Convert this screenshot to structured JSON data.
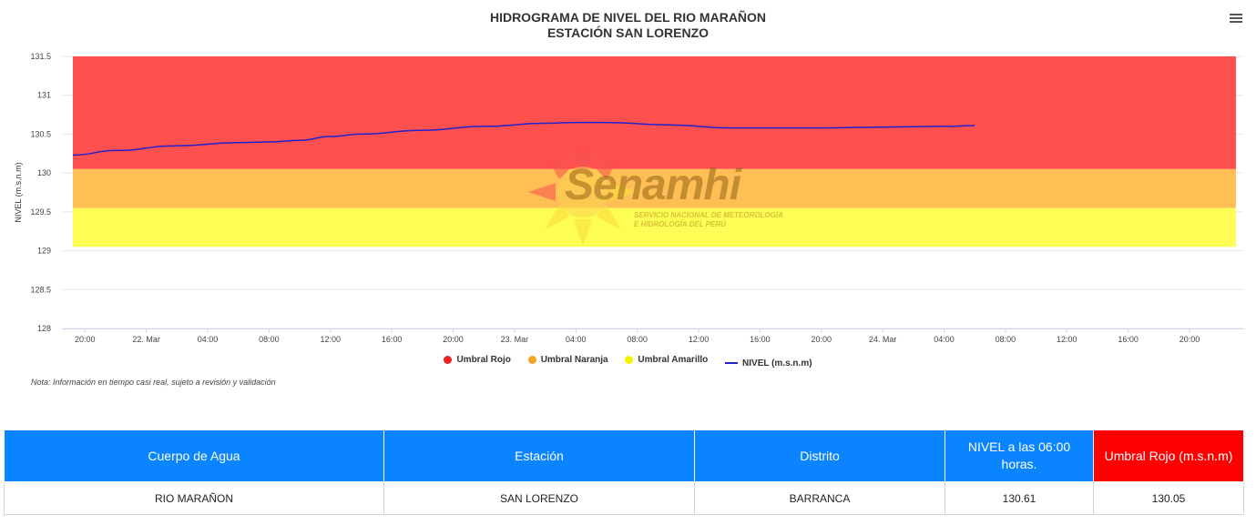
{
  "chart_data": {
    "type": "line",
    "title": "HIDROGRAMA DE NIVEL DEL RIO MARAÑON",
    "subtitle": "ESTACIÓN SAN LORENZO",
    "ylabel": "NIVEL (m.s.n.m)",
    "ylim": [
      128,
      131.5
    ],
    "yticks": [
      "128",
      "128.5",
      "129",
      "129.5",
      "130",
      "130.5",
      "131",
      "131.5"
    ],
    "xlim_hours": [
      -5.5,
      71.5
    ],
    "xticks": [
      {
        "label": "20:00",
        "hour": -4
      },
      {
        "label": "22. Mar",
        "hour": 0
      },
      {
        "label": "04:00",
        "hour": 4
      },
      {
        "label": "08:00",
        "hour": 8
      },
      {
        "label": "12:00",
        "hour": 12
      },
      {
        "label": "16:00",
        "hour": 16
      },
      {
        "label": "20:00",
        "hour": 20
      },
      {
        "label": "23. Mar",
        "hour": 24
      },
      {
        "label": "04:00",
        "hour": 28
      },
      {
        "label": "08:00",
        "hour": 32
      },
      {
        "label": "12:00",
        "hour": 36
      },
      {
        "label": "16:00",
        "hour": 40
      },
      {
        "label": "20:00",
        "hour": 44
      },
      {
        "label": "24. Mar",
        "hour": 48
      },
      {
        "label": "04:00",
        "hour": 52
      },
      {
        "label": "08:00",
        "hour": 56
      },
      {
        "label": "12:00",
        "hour": 60
      },
      {
        "label": "16:00",
        "hour": 64
      },
      {
        "label": "20:00",
        "hour": 68
      }
    ],
    "bands": [
      {
        "name": "Umbral Rojo",
        "from": 130.05,
        "to": 131.5,
        "color": "#ff5050"
      },
      {
        "name": "Umbral Naranja",
        "from": 129.55,
        "to": 130.05,
        "color": "#ffbf55"
      },
      {
        "name": "Umbral Amarillo",
        "from": 129.05,
        "to": 129.55,
        "color": "#fdfd55"
      }
    ],
    "series": [
      {
        "name": "NIVEL (m.s.n.m)",
        "color": "#2222cc",
        "x_hours": [
          -6,
          -2,
          2,
          6,
          8,
          10,
          12,
          14,
          18,
          22,
          26,
          28,
          30,
          34,
          38,
          40,
          44,
          48,
          52,
          54
        ],
        "y": [
          130.23,
          130.29,
          130.35,
          130.39,
          130.4,
          130.42,
          130.47,
          130.5,
          130.55,
          130.6,
          130.64,
          130.65,
          130.65,
          130.62,
          130.58,
          130.58,
          130.58,
          130.59,
          130.6,
          130.61
        ]
      }
    ],
    "legend": [
      {
        "label": "Umbral Rojo",
        "color": "#ee2222",
        "kind": "dot"
      },
      {
        "label": "Umbral Naranja",
        "color": "#f5a623",
        "kind": "dot"
      },
      {
        "label": "Umbral Amarillo",
        "color": "#f5f500",
        "kind": "dot"
      },
      {
        "label": "NIVEL (m.s.n.m)",
        "color": "#2222cc",
        "kind": "line"
      }
    ],
    "legend_position": "bottom-center",
    "grid": true
  },
  "note": "Nota: Información en tiempo casi real, sujeto a revisión y validación",
  "watermark": {
    "name": "Senamhi",
    "line1": "SERVICIO NACIONAL DE METEOROLOGÍA",
    "line2": "E HIDROLOGÍA DEL PERÚ"
  },
  "table": {
    "headers": [
      "Cuerpo de Agua",
      "Estación",
      "Distrito",
      "NIVEL a las 06:00 horas.",
      "Umbral Rojo (m.s.n.m)"
    ],
    "row": [
      "RIO MARAÑON",
      "SAN LORENZO",
      "BARRANCA",
      "130.61",
      "130.05"
    ]
  }
}
